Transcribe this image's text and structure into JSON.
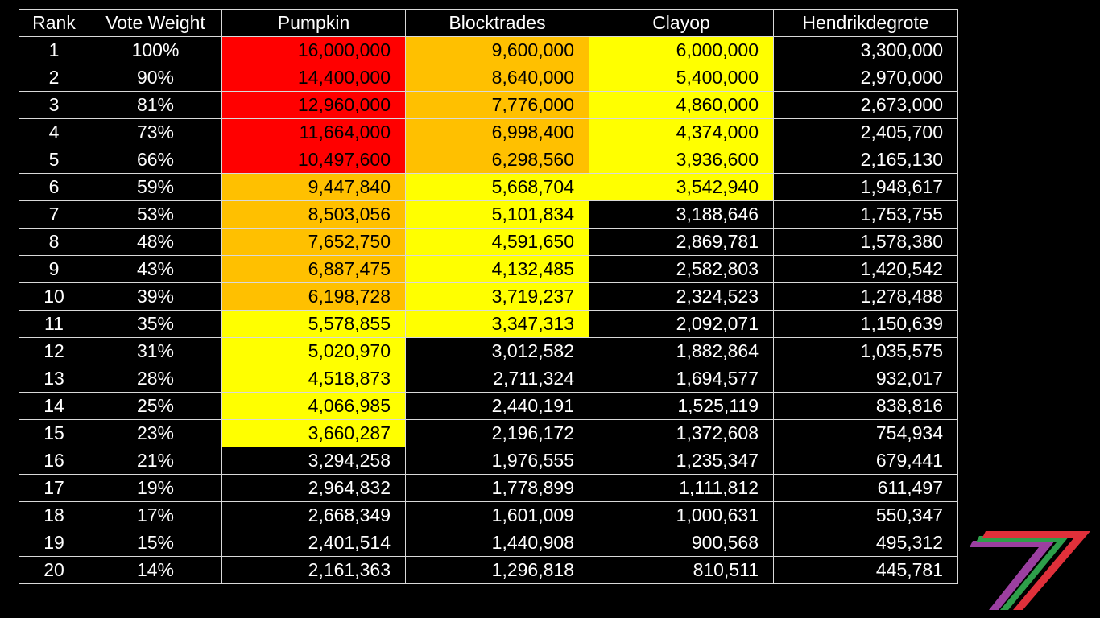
{
  "table": {
    "headers": [
      "Rank",
      "Vote Weight",
      "Pumpkin",
      "Blocktrades",
      "Clayop",
      "Hendrikdegrote"
    ],
    "colors": {
      "red": "#ff0000",
      "orange": "#ffc000",
      "yellow": "#ffff00",
      "none": "#000000"
    },
    "rows": [
      {
        "rank": "1",
        "weight": "100%",
        "cells": [
          {
            "v": "16,000,000",
            "hl": "red"
          },
          {
            "v": "9,600,000",
            "hl": "orange"
          },
          {
            "v": "6,000,000",
            "hl": "yellow"
          },
          {
            "v": "3,300,000",
            "hl": "none"
          }
        ]
      },
      {
        "rank": "2",
        "weight": "90%",
        "cells": [
          {
            "v": "14,400,000",
            "hl": "red"
          },
          {
            "v": "8,640,000",
            "hl": "orange"
          },
          {
            "v": "5,400,000",
            "hl": "yellow"
          },
          {
            "v": "2,970,000",
            "hl": "none"
          }
        ]
      },
      {
        "rank": "3",
        "weight": "81%",
        "cells": [
          {
            "v": "12,960,000",
            "hl": "red"
          },
          {
            "v": "7,776,000",
            "hl": "orange"
          },
          {
            "v": "4,860,000",
            "hl": "yellow"
          },
          {
            "v": "2,673,000",
            "hl": "none"
          }
        ]
      },
      {
        "rank": "4",
        "weight": "73%",
        "cells": [
          {
            "v": "11,664,000",
            "hl": "red"
          },
          {
            "v": "6,998,400",
            "hl": "orange"
          },
          {
            "v": "4,374,000",
            "hl": "yellow"
          },
          {
            "v": "2,405,700",
            "hl": "none"
          }
        ]
      },
      {
        "rank": "5",
        "weight": "66%",
        "cells": [
          {
            "v": "10,497,600",
            "hl": "red"
          },
          {
            "v": "6,298,560",
            "hl": "orange"
          },
          {
            "v": "3,936,600",
            "hl": "yellow"
          },
          {
            "v": "2,165,130",
            "hl": "none"
          }
        ]
      },
      {
        "rank": "6",
        "weight": "59%",
        "cells": [
          {
            "v": "9,447,840",
            "hl": "orange"
          },
          {
            "v": "5,668,704",
            "hl": "yellow"
          },
          {
            "v": "3,542,940",
            "hl": "yellow"
          },
          {
            "v": "1,948,617",
            "hl": "none"
          }
        ]
      },
      {
        "rank": "7",
        "weight": "53%",
        "cells": [
          {
            "v": "8,503,056",
            "hl": "orange"
          },
          {
            "v": "5,101,834",
            "hl": "yellow"
          },
          {
            "v": "3,188,646",
            "hl": "none"
          },
          {
            "v": "1,753,755",
            "hl": "none"
          }
        ]
      },
      {
        "rank": "8",
        "weight": "48%",
        "cells": [
          {
            "v": "7,652,750",
            "hl": "orange"
          },
          {
            "v": "4,591,650",
            "hl": "yellow"
          },
          {
            "v": "2,869,781",
            "hl": "none"
          },
          {
            "v": "1,578,380",
            "hl": "none"
          }
        ]
      },
      {
        "rank": "9",
        "weight": "43%",
        "cells": [
          {
            "v": "6,887,475",
            "hl": "orange"
          },
          {
            "v": "4,132,485",
            "hl": "yellow"
          },
          {
            "v": "2,582,803",
            "hl": "none"
          },
          {
            "v": "1,420,542",
            "hl": "none"
          }
        ]
      },
      {
        "rank": "10",
        "weight": "39%",
        "cells": [
          {
            "v": "6,198,728",
            "hl": "orange"
          },
          {
            "v": "3,719,237",
            "hl": "yellow"
          },
          {
            "v": "2,324,523",
            "hl": "none"
          },
          {
            "v": "1,278,488",
            "hl": "none"
          }
        ]
      },
      {
        "rank": "11",
        "weight": "35%",
        "cells": [
          {
            "v": "5,578,855",
            "hl": "yellow"
          },
          {
            "v": "3,347,313",
            "hl": "yellow"
          },
          {
            "v": "2,092,071",
            "hl": "none"
          },
          {
            "v": "1,150,639",
            "hl": "none"
          }
        ]
      },
      {
        "rank": "12",
        "weight": "31%",
        "cells": [
          {
            "v": "5,020,970",
            "hl": "yellow"
          },
          {
            "v": "3,012,582",
            "hl": "none"
          },
          {
            "v": "1,882,864",
            "hl": "none"
          },
          {
            "v": "1,035,575",
            "hl": "none"
          }
        ]
      },
      {
        "rank": "13",
        "weight": "28%",
        "cells": [
          {
            "v": "4,518,873",
            "hl": "yellow"
          },
          {
            "v": "2,711,324",
            "hl": "none"
          },
          {
            "v": "1,694,577",
            "hl": "none"
          },
          {
            "v": "932,017",
            "hl": "none"
          }
        ]
      },
      {
        "rank": "14",
        "weight": "25%",
        "cells": [
          {
            "v": "4,066,985",
            "hl": "yellow"
          },
          {
            "v": "2,440,191",
            "hl": "none"
          },
          {
            "v": "1,525,119",
            "hl": "none"
          },
          {
            "v": "838,816",
            "hl": "none"
          }
        ]
      },
      {
        "rank": "15",
        "weight": "23%",
        "cells": [
          {
            "v": "3,660,287",
            "hl": "yellow"
          },
          {
            "v": "2,196,172",
            "hl": "none"
          },
          {
            "v": "1,372,608",
            "hl": "none"
          },
          {
            "v": "754,934",
            "hl": "none"
          }
        ]
      },
      {
        "rank": "16",
        "weight": "21%",
        "cells": [
          {
            "v": "3,294,258",
            "hl": "none"
          },
          {
            "v": "1,976,555",
            "hl": "none"
          },
          {
            "v": "1,235,347",
            "hl": "none"
          },
          {
            "v": "679,441",
            "hl": "none"
          }
        ]
      },
      {
        "rank": "17",
        "weight": "19%",
        "cells": [
          {
            "v": "2,964,832",
            "hl": "none"
          },
          {
            "v": "1,778,899",
            "hl": "none"
          },
          {
            "v": "1,111,812",
            "hl": "none"
          },
          {
            "v": "611,497",
            "hl": "none"
          }
        ]
      },
      {
        "rank": "18",
        "weight": "17%",
        "cells": [
          {
            "v": "2,668,349",
            "hl": "none"
          },
          {
            "v": "1,601,009",
            "hl": "none"
          },
          {
            "v": "1,000,631",
            "hl": "none"
          },
          {
            "v": "550,347",
            "hl": "none"
          }
        ]
      },
      {
        "rank": "19",
        "weight": "15%",
        "cells": [
          {
            "v": "2,401,514",
            "hl": "none"
          },
          {
            "v": "1,440,908",
            "hl": "none"
          },
          {
            "v": "900,568",
            "hl": "none"
          },
          {
            "v": "495,312",
            "hl": "none"
          }
        ]
      },
      {
        "rank": "20",
        "weight": "14%",
        "cells": [
          {
            "v": "2,161,363",
            "hl": "none"
          },
          {
            "v": "1,296,818",
            "hl": "none"
          },
          {
            "v": "810,511",
            "hl": "none"
          },
          {
            "v": "445,781",
            "hl": "none"
          }
        ]
      }
    ]
  },
  "logo": {
    "icon": "stylized-seven-logo-icon",
    "colors": {
      "purple": "#9b3fa0",
      "green": "#2e9e4a",
      "red": "#e0303a"
    }
  }
}
